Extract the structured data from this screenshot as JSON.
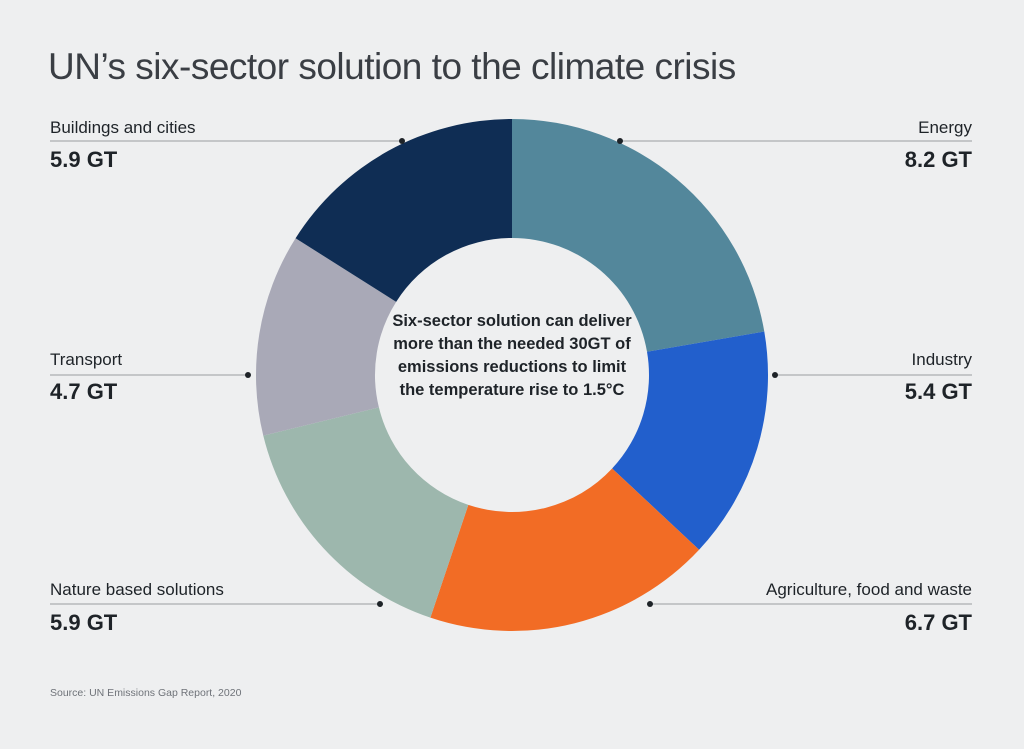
{
  "chart_data": {
    "type": "pie",
    "donut": true,
    "title": "UN’s six-sector solution to the climate crisis",
    "unit": "GT",
    "center_text": "Six-sector solution can deliver more than the needed 30GT of emissions reductions to limit the temperature rise to 1.5°C",
    "source": "Source: UN Emissions Gap Report, 2020",
    "slices": [
      {
        "name": "Energy",
        "value": 8.2,
        "value_label": "8.2 GT",
        "color": "#53879b"
      },
      {
        "name": "Industry",
        "value": 5.4,
        "value_label": "5.4 GT",
        "color": "#225fcc"
      },
      {
        "name": "Agriculture, food and waste",
        "value": 6.7,
        "value_label": "6.7 GT",
        "color": "#f26c25"
      },
      {
        "name": "Nature based solutions",
        "value": 5.9,
        "value_label": "5.9 GT",
        "color": "#9db7ad"
      },
      {
        "name": "Transport",
        "value": 4.7,
        "value_label": "4.7 GT",
        "color": "#a9a9b7"
      },
      {
        "name": "Buildings and cities",
        "value": 5.9,
        "value_label": "5.9 GT",
        "color": "#0f2d54"
      }
    ],
    "start": "top",
    "direction": "clockwise",
    "background": "#eeeff0"
  }
}
